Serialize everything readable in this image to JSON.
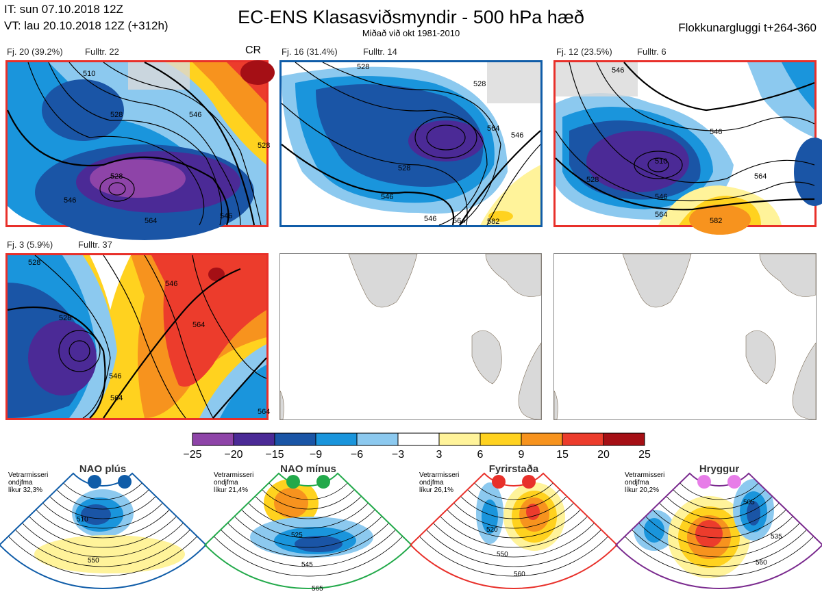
{
  "header": {
    "it": "IT: sun 07.10.2018 12Z",
    "vt": "VT: lau 20.10.2018 12Z  (+312h)",
    "title": "EC-ENS Klasasviðsmyndir - 500 hPa hæð",
    "subtitle": "Miðað við okt 1981-2010",
    "window": "Flokkunargluggi t+264-360"
  },
  "clusters": [
    {
      "label": "Fj. 20 (39.2%)",
      "control": "Fulltr. 22",
      "tag": "CR",
      "border": "#e8302a",
      "contours": [
        "528",
        "510",
        "528",
        "546",
        "546",
        "564",
        "546",
        "528"
      ]
    },
    {
      "label": "Fj. 16 (31.4%)",
      "control": "Fulltr. 14",
      "tag": "",
      "border": "#0f5ca8",
      "contours": [
        "528",
        "528",
        "546",
        "564",
        "546",
        "528",
        "546",
        "564",
        "582"
      ]
    },
    {
      "label": "Fj. 12 (23.5%)",
      "control": "Fulltr. 6",
      "tag": "",
      "border": "#e8302a",
      "contours": [
        "546",
        "546",
        "510",
        "528",
        "546",
        "564",
        "564",
        "582"
      ]
    },
    {
      "label": "Fj. 3 (5.9%)",
      "control": "Fulltr. 37",
      "tag": "",
      "border": "#e8302a",
      "contours": [
        "528",
        "528",
        "546",
        "564",
        "546",
        "564",
        "564"
      ]
    }
  ],
  "colorbar": {
    "ticks": [
      "−25",
      "−20",
      "−15",
      "−9",
      "−6",
      "−3",
      "3",
      "6",
      "9",
      "15",
      "20",
      "25"
    ],
    "colors": [
      "#8e44a8",
      "#4b2a96",
      "#1a55a6",
      "#1a95dc",
      "#8cc9ef",
      "#ffffff",
      "#fff39a",
      "#ffd21f",
      "#f7931e",
      "#ec3c2c",
      "#a50f15"
    ]
  },
  "regimes": [
    {
      "name": "NAO plús",
      "note": "Vetrarmisseri\nondjfma\nlíkur 32,3%",
      "color": "#0f5ca8",
      "border": "#0f5ca8",
      "contours": [
        "510",
        "550"
      ]
    },
    {
      "name": "NAO mínus",
      "note": "Vetrarmisseri\nondjfma\nlíkur 21,4%",
      "color": "#22a94a",
      "border": "#22a94a",
      "contours": [
        "525",
        "545",
        "565"
      ]
    },
    {
      "name": "Fyrirstaða",
      "note": "Vetrarmisseri\nondjfma\nlíkur 26,1%",
      "color": "#e8302a",
      "border": "#e8302a",
      "contours": [
        "520",
        "550",
        "560"
      ]
    },
    {
      "name": "Hryggur",
      "note": "Vetrarmisseri\nondjfma\nlíkur 20,2%",
      "color": "#e77de8",
      "border": "#7a2a8e",
      "contours": [
        "505",
        "535",
        "560"
      ]
    }
  ]
}
